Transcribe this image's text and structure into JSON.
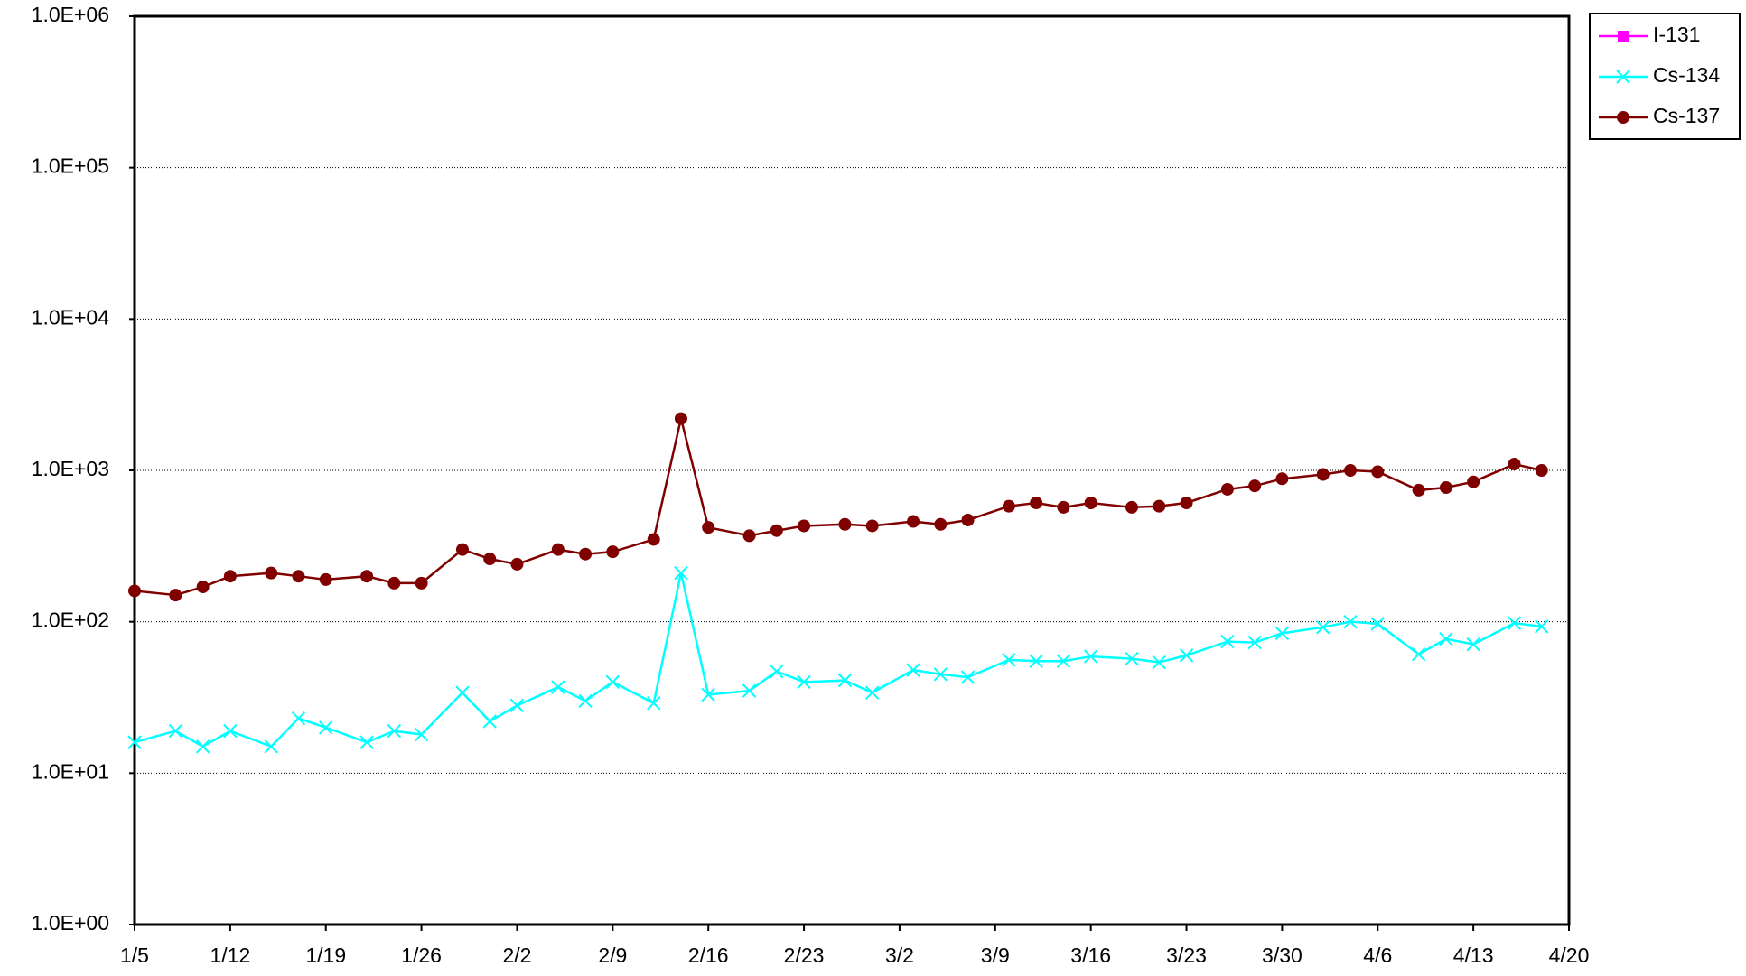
{
  "chart_data": {
    "type": "line",
    "x": [
      "1/5",
      "1/8",
      "1/10",
      "1/12",
      "1/15",
      "1/17",
      "1/19",
      "1/22",
      "1/24",
      "1/26",
      "1/29",
      "1/31",
      "2/2",
      "2/5",
      "2/7",
      "2/9",
      "2/12",
      "2/14",
      "2/16",
      "2/19",
      "2/21",
      "2/23",
      "2/26",
      "2/28",
      "3/3",
      "3/5",
      "3/7",
      "3/10",
      "3/12",
      "3/14",
      "3/16",
      "3/19",
      "3/21",
      "3/23",
      "3/26",
      "3/28",
      "3/30",
      "4/2",
      "4/4",
      "4/6",
      "4/9",
      "4/11",
      "4/13",
      "4/16",
      "4/18"
    ],
    "series": [
      {
        "name": "I-131",
        "color": "#ff00ff",
        "marker": "square",
        "values": [
          null,
          null,
          null,
          null,
          null,
          null,
          null,
          null,
          null,
          null,
          null,
          null,
          null,
          null,
          null,
          null,
          null,
          null,
          null,
          null,
          null,
          null,
          null,
          null,
          null,
          null,
          null,
          null,
          null,
          null,
          null,
          null,
          null,
          null,
          null,
          null,
          null,
          null,
          null,
          null,
          null,
          null,
          null,
          null,
          null
        ]
      },
      {
        "name": "Cs-134",
        "color": "#00ffff",
        "marker": "x",
        "values": [
          16,
          19,
          15,
          19,
          15,
          23,
          20,
          16,
          19,
          18,
          34,
          22,
          28,
          37,
          30,
          40,
          29,
          210,
          33,
          35,
          47,
          40,
          41,
          34,
          48,
          45,
          43,
          56,
          55,
          55,
          59,
          57,
          54,
          60,
          74,
          73,
          84,
          92,
          100,
          97,
          61,
          77,
          71,
          98,
          93
        ]
      },
      {
        "name": "Cs-137",
        "color": "#800000",
        "marker": "circle",
        "values": [
          160,
          150,
          170,
          200,
          210,
          200,
          190,
          200,
          180,
          180,
          300,
          260,
          240,
          300,
          280,
          290,
          350,
          2200,
          420,
          370,
          400,
          430,
          440,
          430,
          460,
          440,
          470,
          580,
          610,
          570,
          610,
          570,
          580,
          610,
          750,
          790,
          880,
          940,
          1000,
          980,
          740,
          770,
          840,
          1100,
          1000
        ]
      }
    ],
    "xlim": [
      "1/5",
      "4/20"
    ],
    "xticks": [
      "1/5",
      "1/12",
      "1/19",
      "1/26",
      "2/2",
      "2/9",
      "2/16",
      "2/23",
      "3/2",
      "3/9",
      "3/16",
      "3/23",
      "3/30",
      "4/6",
      "4/13",
      "4/20"
    ],
    "ylog": true,
    "ylim": [
      1,
      1000000
    ],
    "yticks": [
      {
        "value": 1,
        "label": "1.0E+00"
      },
      {
        "value": 10,
        "label": "1.0E+01"
      },
      {
        "value": 100,
        "label": "1.0E+02"
      },
      {
        "value": 1000,
        "label": "1.0E+03"
      },
      {
        "value": 10000,
        "label": "1.0E+04"
      },
      {
        "value": 100000,
        "label": "1.0E+05"
      },
      {
        "value": 1000000,
        "label": "1.0E+06"
      }
    ],
    "grid": true,
    "legend": "top-right"
  }
}
